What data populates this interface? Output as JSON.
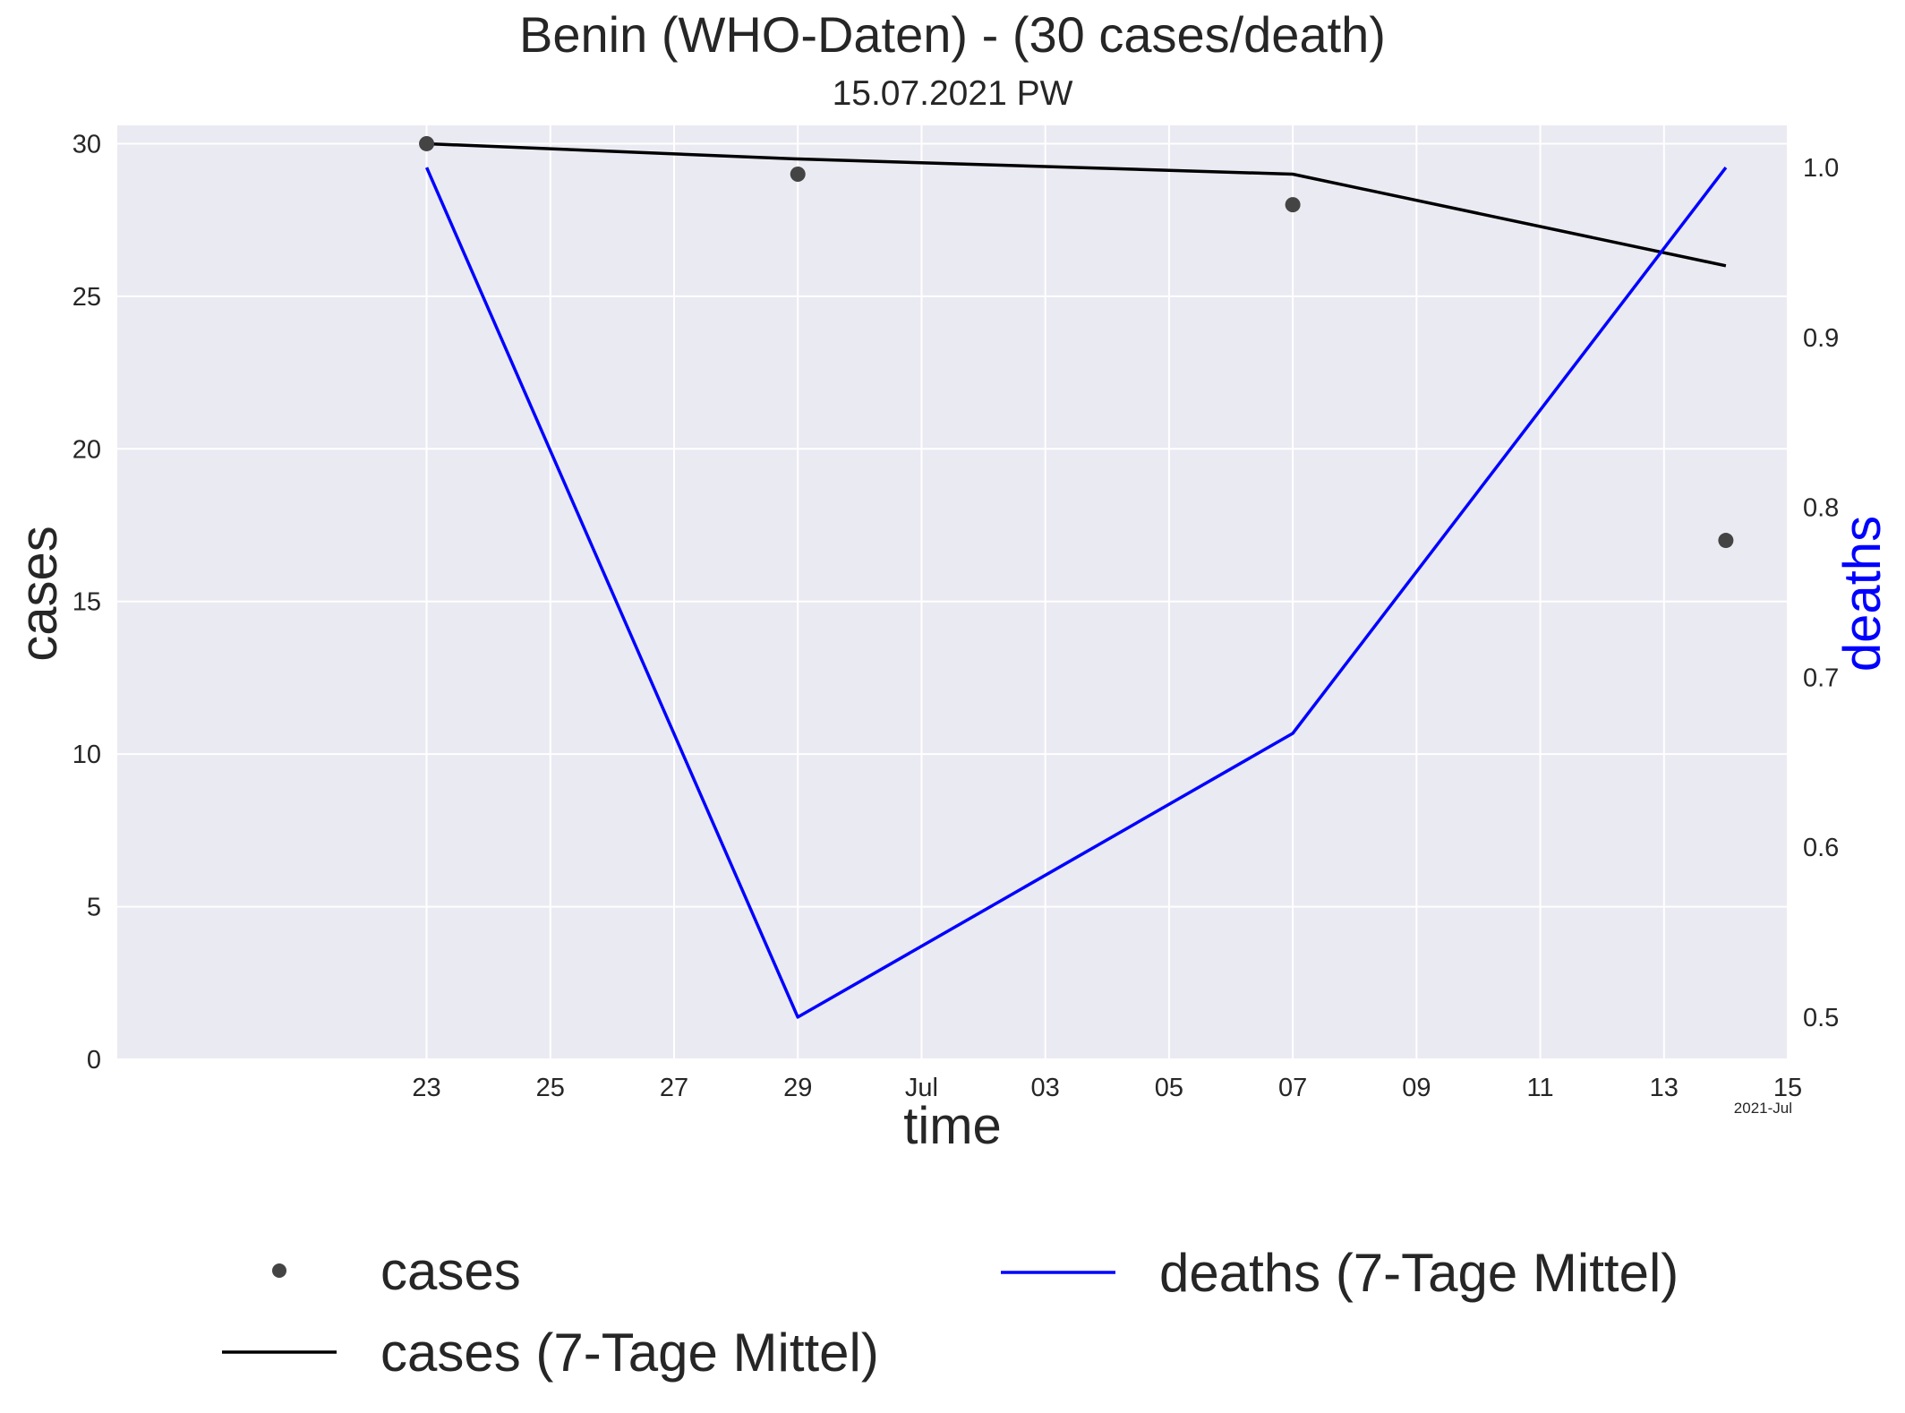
{
  "chart_data": {
    "type": "line",
    "title": "Benin (WHO-Daten) - (30 cases/death)",
    "subtitle": "15.07.2021 PW",
    "xlabel": "time",
    "ylabel": "cases",
    "y2label": "deaths",
    "x_offset_label": "2021-Jul",
    "x_ticks": [
      "23",
      "25",
      "27",
      "29",
      "Jul",
      "03",
      "05",
      "07",
      "09",
      "11",
      "13",
      "15"
    ],
    "x_tick_dates": [
      "2021-06-23",
      "2021-06-25",
      "2021-06-27",
      "2021-06-29",
      "2021-07-01",
      "2021-07-03",
      "2021-07-05",
      "2021-07-07",
      "2021-07-09",
      "2021-07-11",
      "2021-07-13",
      "2021-07-15"
    ],
    "xlim": [
      "2021-06-18",
      "2021-07-15"
    ],
    "ylim": [
      0,
      30.6
    ],
    "y_ticks": [
      0,
      5,
      10,
      15,
      20,
      25,
      30
    ],
    "y2lim": [
      0.4752,
      1.0248
    ],
    "y2_ticks": [
      "0.5",
      "0.6",
      "0.7",
      "0.8",
      "0.9",
      "1.0"
    ],
    "grid": true,
    "legend_position": "bottom",
    "series": [
      {
        "name": "cases",
        "kind": "scatter",
        "axis": "left",
        "color": "#444444",
        "x": [
          "2021-06-23",
          "2021-06-29",
          "2021-07-07",
          "2021-07-14"
        ],
        "y": [
          30,
          29,
          28,
          17
        ]
      },
      {
        "name": "cases (7-Tage Mittel)",
        "kind": "line",
        "axis": "left",
        "color": "#000000",
        "x": [
          "2021-06-23",
          "2021-06-29",
          "2021-07-07",
          "2021-07-14"
        ],
        "y": [
          30,
          29.5,
          29,
          26
        ]
      },
      {
        "name": "deaths (7-Tage Mittel)",
        "kind": "line",
        "axis": "right",
        "color": "#0000ff",
        "x": [
          "2021-06-23",
          "2021-06-29",
          "2021-07-07",
          "2021-07-14"
        ],
        "y": [
          1.0,
          0.5,
          0.667,
          1.0
        ]
      }
    ]
  }
}
